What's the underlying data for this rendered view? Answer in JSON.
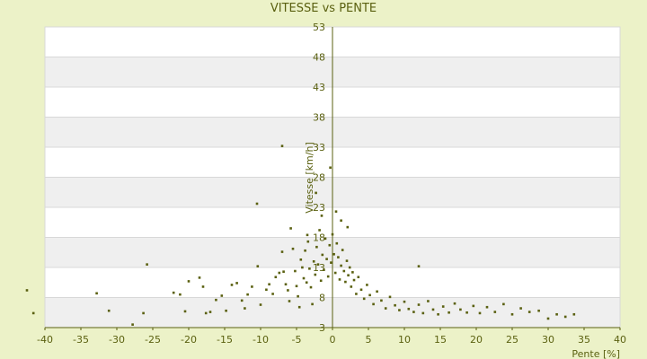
{
  "chart_data": {
    "type": "scatter",
    "title": "VITESSE vs PENTE",
    "xlabel": "Pente [%]",
    "ylabel": "Vitesse [km/h]",
    "xlim": [
      -40,
      40
    ],
    "ylim": [
      3,
      53
    ],
    "x_ticks": [
      -40,
      -35,
      -30,
      -25,
      -20,
      -15,
      -10,
      -5,
      0,
      5,
      10,
      15,
      20,
      25,
      30,
      35,
      40
    ],
    "y_ticks": [
      3,
      8,
      13,
      18,
      23,
      28,
      33,
      38,
      43,
      48,
      53
    ],
    "grid": true,
    "colors": {
      "background": "#ecf2c8",
      "band_light": "#ffffff",
      "band_dark": "#efefef",
      "gridline": "#d8d8d8",
      "axis": "#5a6010",
      "point": "#5a6010",
      "text": "#5a6010"
    },
    "points": [
      [
        -42.5,
        9.2
      ],
      [
        -41.6,
        5.4
      ],
      [
        -32.8,
        8.7
      ],
      [
        -31.1,
        5.8
      ],
      [
        -27.8,
        3.5
      ],
      [
        -26.3,
        5.4
      ],
      [
        -25.8,
        13.5
      ],
      [
        -22.1,
        8.8
      ],
      [
        -21.2,
        8.5
      ],
      [
        -20.5,
        5.7
      ],
      [
        -20.0,
        10.7
      ],
      [
        -18.5,
        11.3
      ],
      [
        -18.0,
        9.8
      ],
      [
        -17.6,
        5.4
      ],
      [
        -17.0,
        5.6
      ],
      [
        -16.2,
        7.6
      ],
      [
        -15.4,
        8.3
      ],
      [
        -14.8,
        5.8
      ],
      [
        -14.0,
        10.1
      ],
      [
        -13.3,
        10.4
      ],
      [
        -12.6,
        7.5
      ],
      [
        -12.2,
        6.2
      ],
      [
        -11.8,
        8.5
      ],
      [
        -11.2,
        9.8
      ],
      [
        -10.4,
        13.2
      ],
      [
        -10.0,
        6.8
      ],
      [
        -9.2,
        9.3
      ],
      [
        -8.8,
        10.2
      ],
      [
        -8.3,
        8.6
      ],
      [
        -7.9,
        11.4
      ],
      [
        -7.4,
        12.1
      ],
      [
        -7.0,
        15.6
      ],
      [
        -6.8,
        12.3
      ],
      [
        -6.5,
        10.2
      ],
      [
        -6.2,
        9.2
      ],
      [
        -6.0,
        7.4
      ],
      [
        -5.8,
        19.5
      ],
      [
        -5.5,
        16.1
      ],
      [
        -5.2,
        12.4
      ],
      [
        -5.0,
        9.9
      ],
      [
        -4.8,
        8.2
      ],
      [
        -4.6,
        6.4
      ],
      [
        -4.4,
        14.3
      ],
      [
        -4.2,
        13.0
      ],
      [
        -4.0,
        11.2
      ],
      [
        -3.8,
        15.8
      ],
      [
        -3.6,
        10.5
      ],
      [
        -3.4,
        17.3
      ],
      [
        -3.2,
        12.8
      ],
      [
        -3.0,
        9.7
      ],
      [
        -2.8,
        6.9
      ],
      [
        -2.6,
        14.0
      ],
      [
        -2.4,
        11.8
      ],
      [
        -2.2,
        16.4
      ],
      [
        -2.0,
        13.5
      ],
      [
        -1.8,
        19.2
      ],
      [
        -1.6,
        10.8
      ],
      [
        -1.4,
        15.1
      ],
      [
        -1.2,
        12.6
      ],
      [
        -1.0,
        17.8
      ],
      [
        -0.8,
        14.4
      ],
      [
        -0.6,
        11.5
      ],
      [
        -0.4,
        16.7
      ],
      [
        -0.2,
        13.8
      ],
      [
        0.0,
        18.5
      ],
      [
        0.2,
        15.2
      ],
      [
        0.4,
        12.1
      ],
      [
        0.6,
        17.0
      ],
      [
        0.8,
        14.7
      ],
      [
        1.0,
        11.0
      ],
      [
        1.2,
        13.3
      ],
      [
        1.4,
        15.9
      ],
      [
        1.6,
        12.4
      ],
      [
        1.8,
        10.6
      ],
      [
        2.0,
        14.1
      ],
      [
        2.2,
        11.7
      ],
      [
        2.4,
        13.0
      ],
      [
        2.6,
        9.8
      ],
      [
        2.8,
        12.2
      ],
      [
        3.0,
        10.9
      ],
      [
        3.3,
        8.6
      ],
      [
        3.6,
        11.4
      ],
      [
        4.0,
        9.3
      ],
      [
        4.4,
        7.8
      ],
      [
        4.8,
        10.1
      ],
      [
        5.2,
        8.4
      ],
      [
        5.7,
        6.9
      ],
      [
        6.2,
        9.0
      ],
      [
        6.8,
        7.5
      ],
      [
        7.4,
        6.2
      ],
      [
        8.0,
        8.1
      ],
      [
        8.7,
        6.7
      ],
      [
        9.3,
        5.9
      ],
      [
        10.0,
        7.3
      ],
      [
        10.6,
        6.1
      ],
      [
        11.3,
        5.6
      ],
      [
        12.0,
        6.8
      ],
      [
        12.6,
        5.4
      ],
      [
        13.3,
        7.4
      ],
      [
        14.0,
        6.0
      ],
      [
        14.7,
        5.2
      ],
      [
        15.4,
        6.5
      ],
      [
        16.2,
        5.5
      ],
      [
        17.0,
        7.0
      ],
      [
        17.8,
        6.0
      ],
      [
        18.7,
        5.5
      ],
      [
        19.6,
        6.6
      ],
      [
        20.5,
        5.4
      ],
      [
        21.5,
        6.4
      ],
      [
        22.6,
        5.6
      ],
      [
        23.8,
        6.9
      ],
      [
        25.0,
        5.2
      ],
      [
        26.2,
        6.2
      ],
      [
        27.4,
        5.6
      ],
      [
        28.7,
        5.8
      ],
      [
        30.0,
        4.5
      ],
      [
        31.2,
        5.2
      ],
      [
        32.4,
        4.8
      ],
      [
        33.6,
        5.2
      ],
      [
        -7.0,
        33.2
      ],
      [
        -10.5,
        23.6
      ],
      [
        -0.3,
        29.6
      ],
      [
        1.2,
        20.8
      ],
      [
        -1.5,
        21.6
      ],
      [
        0.5,
        22.3
      ],
      [
        -2.3,
        25.4
      ],
      [
        2.1,
        19.7
      ],
      [
        -3.5,
        18.4
      ],
      [
        12.0,
        13.2
      ]
    ]
  }
}
